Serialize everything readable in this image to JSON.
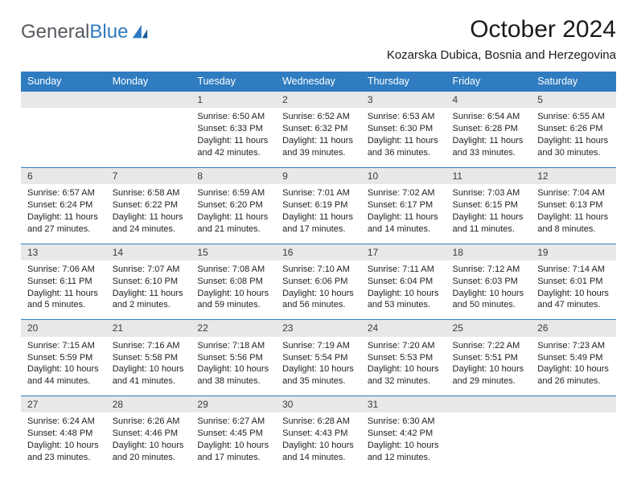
{
  "logo": {
    "word1": "General",
    "word2": "Blue"
  },
  "header": {
    "month": "October 2024",
    "location": "Kozarska Dubica, Bosnia and Herzegovina"
  },
  "colors": {
    "accent": "#2f7cc0",
    "dayStripe": "#e8e8e8",
    "text": "#1a1a1a"
  },
  "weekdays": [
    "Sunday",
    "Monday",
    "Tuesday",
    "Wednesday",
    "Thursday",
    "Friday",
    "Saturday"
  ],
  "days": {
    "1": {
      "sunrise": "6:50 AM",
      "sunset": "6:33 PM",
      "daylight": "11 hours and 42 minutes."
    },
    "2": {
      "sunrise": "6:52 AM",
      "sunset": "6:32 PM",
      "daylight": "11 hours and 39 minutes."
    },
    "3": {
      "sunrise": "6:53 AM",
      "sunset": "6:30 PM",
      "daylight": "11 hours and 36 minutes."
    },
    "4": {
      "sunrise": "6:54 AM",
      "sunset": "6:28 PM",
      "daylight": "11 hours and 33 minutes."
    },
    "5": {
      "sunrise": "6:55 AM",
      "sunset": "6:26 PM",
      "daylight": "11 hours and 30 minutes."
    },
    "6": {
      "sunrise": "6:57 AM",
      "sunset": "6:24 PM",
      "daylight": "11 hours and 27 minutes."
    },
    "7": {
      "sunrise": "6:58 AM",
      "sunset": "6:22 PM",
      "daylight": "11 hours and 24 minutes."
    },
    "8": {
      "sunrise": "6:59 AM",
      "sunset": "6:20 PM",
      "daylight": "11 hours and 21 minutes."
    },
    "9": {
      "sunrise": "7:01 AM",
      "sunset": "6:19 PM",
      "daylight": "11 hours and 17 minutes."
    },
    "10": {
      "sunrise": "7:02 AM",
      "sunset": "6:17 PM",
      "daylight": "11 hours and 14 minutes."
    },
    "11": {
      "sunrise": "7:03 AM",
      "sunset": "6:15 PM",
      "daylight": "11 hours and 11 minutes."
    },
    "12": {
      "sunrise": "7:04 AM",
      "sunset": "6:13 PM",
      "daylight": "11 hours and 8 minutes."
    },
    "13": {
      "sunrise": "7:06 AM",
      "sunset": "6:11 PM",
      "daylight": "11 hours and 5 minutes."
    },
    "14": {
      "sunrise": "7:07 AM",
      "sunset": "6:10 PM",
      "daylight": "11 hours and 2 minutes."
    },
    "15": {
      "sunrise": "7:08 AM",
      "sunset": "6:08 PM",
      "daylight": "10 hours and 59 minutes."
    },
    "16": {
      "sunrise": "7:10 AM",
      "sunset": "6:06 PM",
      "daylight": "10 hours and 56 minutes."
    },
    "17": {
      "sunrise": "7:11 AM",
      "sunset": "6:04 PM",
      "daylight": "10 hours and 53 minutes."
    },
    "18": {
      "sunrise": "7:12 AM",
      "sunset": "6:03 PM",
      "daylight": "10 hours and 50 minutes."
    },
    "19": {
      "sunrise": "7:14 AM",
      "sunset": "6:01 PM",
      "daylight": "10 hours and 47 minutes."
    },
    "20": {
      "sunrise": "7:15 AM",
      "sunset": "5:59 PM",
      "daylight": "10 hours and 44 minutes."
    },
    "21": {
      "sunrise": "7:16 AM",
      "sunset": "5:58 PM",
      "daylight": "10 hours and 41 minutes."
    },
    "22": {
      "sunrise": "7:18 AM",
      "sunset": "5:56 PM",
      "daylight": "10 hours and 38 minutes."
    },
    "23": {
      "sunrise": "7:19 AM",
      "sunset": "5:54 PM",
      "daylight": "10 hours and 35 minutes."
    },
    "24": {
      "sunrise": "7:20 AM",
      "sunset": "5:53 PM",
      "daylight": "10 hours and 32 minutes."
    },
    "25": {
      "sunrise": "7:22 AM",
      "sunset": "5:51 PM",
      "daylight": "10 hours and 29 minutes."
    },
    "26": {
      "sunrise": "7:23 AM",
      "sunset": "5:49 PM",
      "daylight": "10 hours and 26 minutes."
    },
    "27": {
      "sunrise": "6:24 AM",
      "sunset": "4:48 PM",
      "daylight": "10 hours and 23 minutes."
    },
    "28": {
      "sunrise": "6:26 AM",
      "sunset": "4:46 PM",
      "daylight": "10 hours and 20 minutes."
    },
    "29": {
      "sunrise": "6:27 AM",
      "sunset": "4:45 PM",
      "daylight": "10 hours and 17 minutes."
    },
    "30": {
      "sunrise": "6:28 AM",
      "sunset": "4:43 PM",
      "daylight": "10 hours and 14 minutes."
    },
    "31": {
      "sunrise": "6:30 AM",
      "sunset": "4:42 PM",
      "daylight": "10 hours and 12 minutes."
    }
  },
  "labels": {
    "sunrise": "Sunrise: ",
    "sunset": "Sunset: ",
    "daylight": "Daylight: "
  },
  "grid": {
    "startOffset": 2,
    "numDays": 31,
    "rows": 5,
    "cols": 7
  }
}
